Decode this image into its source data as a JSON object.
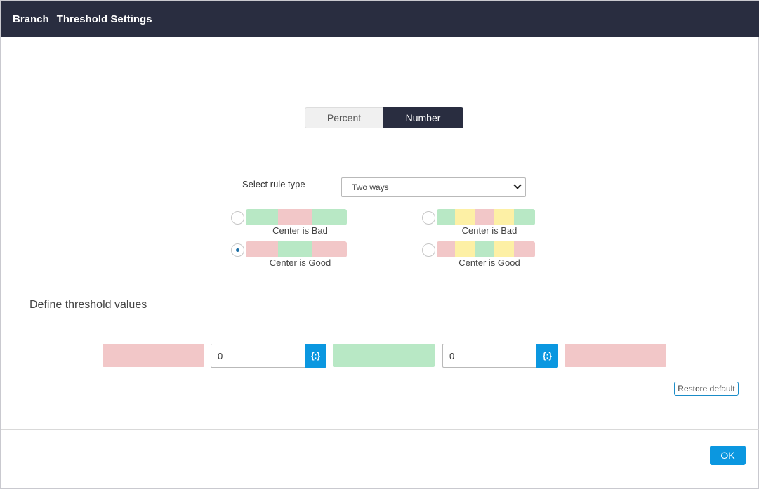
{
  "header": {
    "title_part1": "Branch",
    "title_part2": "Threshold Settings",
    "background": "#292d40"
  },
  "mode_toggle": {
    "options": [
      "Percent",
      "Number"
    ],
    "selected": "Number"
  },
  "rule_type": {
    "label": "Select rule type",
    "selected_value": "Two ways"
  },
  "rule_options": [
    {
      "caption": "Center is Bad",
      "checked": false,
      "colors": [
        "green",
        "red",
        "green"
      ]
    },
    {
      "caption": "Center is Good",
      "checked": true,
      "colors": [
        "red",
        "green",
        "red"
      ]
    },
    {
      "caption": "Center is Bad",
      "checked": false,
      "colors": [
        "green",
        "yellow",
        "red",
        "yellow",
        "green"
      ]
    },
    {
      "caption": "Center is Good",
      "checked": false,
      "colors": [
        "red",
        "yellow",
        "green",
        "yellow",
        "red"
      ]
    }
  ],
  "threshold": {
    "title": "Define threshold values",
    "values": [
      "0",
      "0"
    ],
    "variable_icon": "{:}",
    "zones": [
      "red",
      "green",
      "red"
    ]
  },
  "restore_label": "Restore default",
  "ok_label": "OK",
  "colors": {
    "green": "#b8e8c5",
    "red": "#f2c7c8",
    "yellow": "#fdf0a5",
    "accent": "#0b97e0"
  }
}
